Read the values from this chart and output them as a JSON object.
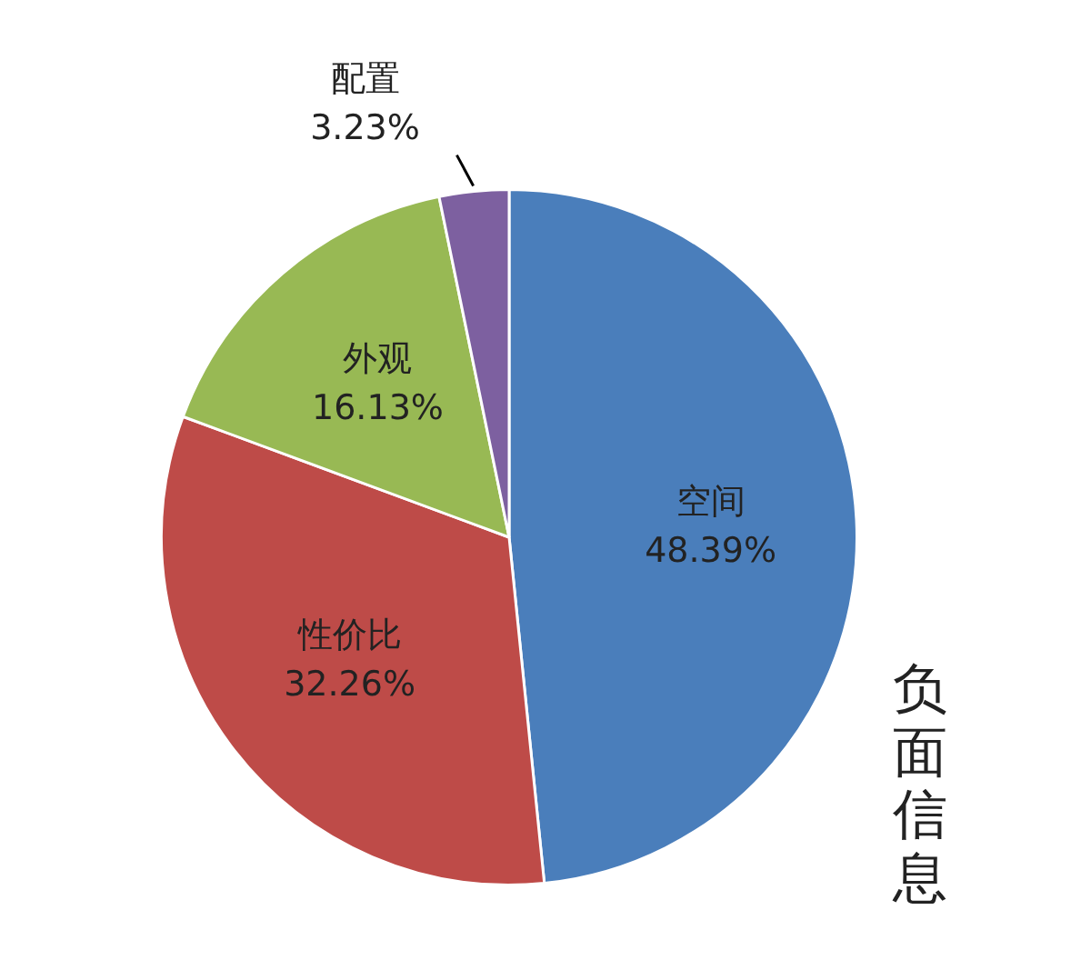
{
  "chart_data": {
    "type": "pie",
    "title": "负面信息",
    "categories": [
      "空间",
      "性价比",
      "外观",
      "配置"
    ],
    "values": [
      48.39,
      32.26,
      16.13,
      3.23
    ],
    "value_labels": [
      "48.39%",
      "32.26%",
      "16.13%",
      "3.23%"
    ],
    "colors": [
      "#4a7ebb",
      "#be4b48",
      "#98b954",
      "#7d60a0"
    ],
    "legend": false
  }
}
